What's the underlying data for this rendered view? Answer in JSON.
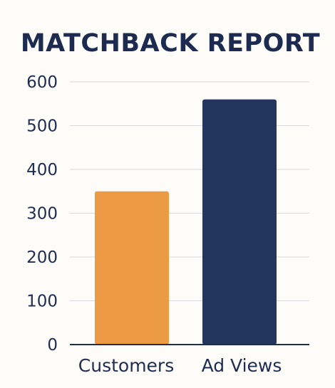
{
  "chart_data": {
    "type": "bar",
    "title": "MATCHBACK REPORT",
    "categories": [
      "Customers",
      "Ad Views"
    ],
    "values": [
      350,
      560
    ],
    "ylim": [
      0,
      600
    ],
    "yticks": [
      0,
      100,
      200,
      300,
      400,
      500,
      600
    ],
    "grid": true,
    "colors": [
      "#ec9a43",
      "#22365e"
    ]
  }
}
